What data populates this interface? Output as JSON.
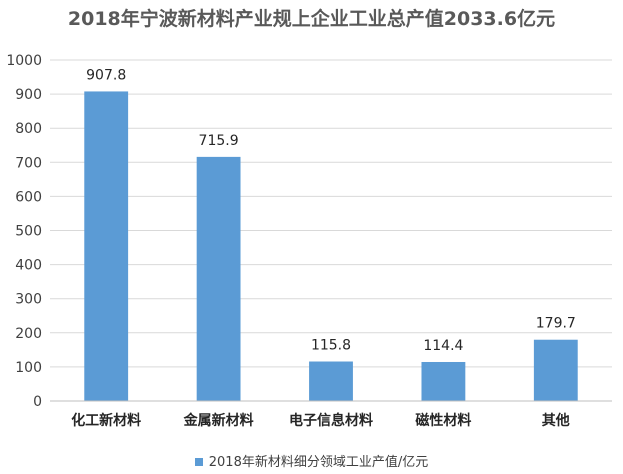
{
  "chart_data": {
    "type": "bar",
    "title": "2018年宁波新材料产业规上企业工业总产值2033.6亿元",
    "categories": [
      "化工新材料",
      "金属新材料",
      "电子信息材料",
      "磁性材料",
      "其他"
    ],
    "series": [
      {
        "name": "2018年新材料细分领域工业产值/亿元",
        "values": [
          907.8,
          715.9,
          115.8,
          114.4,
          179.7
        ]
      }
    ],
    "data_labels": [
      "907.8",
      "715.9",
      "115.8",
      "114.4",
      "179.7"
    ],
    "yticks": [
      "0",
      "100",
      "200",
      "300",
      "400",
      "500",
      "600",
      "700",
      "800",
      "900",
      "1000"
    ],
    "ylim": [
      0,
      1000
    ],
    "grid": true,
    "legend_position": "bottom",
    "colors": {
      "bar": "#5b9bd5",
      "grid": "#d9d9d9",
      "axis": "#bfbfbf"
    }
  }
}
